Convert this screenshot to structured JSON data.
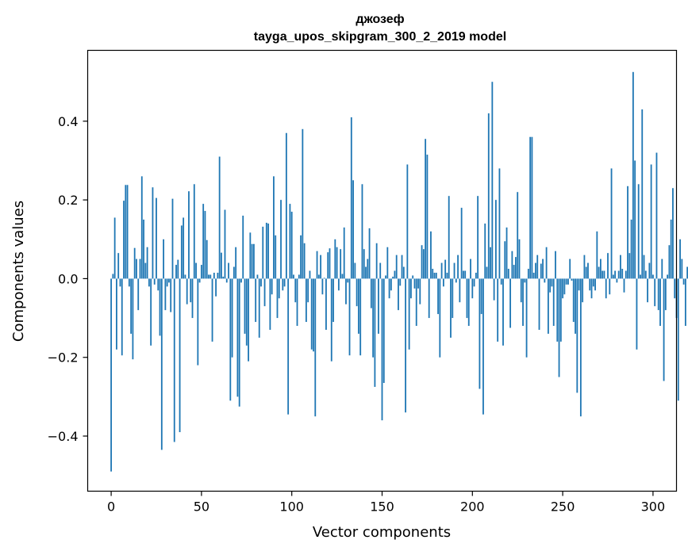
{
  "chart_data": {
    "type": "bar",
    "title": "джозеф",
    "subtitle": "tayga_upos_skipgram_300_2_2019 model",
    "xlabel": "Vector components",
    "ylabel": "Components values",
    "xlim": [
      -13,
      313
    ],
    "ylim": [
      -0.54,
      0.58
    ],
    "xticks": [
      0,
      50,
      100,
      150,
      200,
      250,
      300
    ],
    "yticks": [
      -0.4,
      -0.2,
      0.0,
      0.2,
      0.4
    ],
    "ytick_labels": [
      "−0.4",
      "−0.2",
      "0.0",
      "0.2",
      "0.4"
    ],
    "grid": false,
    "bar_color": "#1f77b4",
    "values": [
      -0.49,
      0.012,
      0.155,
      -0.18,
      0.065,
      -0.02,
      -0.195,
      0.198,
      0.238,
      0.238,
      -0.02,
      -0.14,
      -0.205,
      0.078,
      0.05,
      -0.08,
      0.05,
      0.26,
      0.15,
      0.04,
      0.08,
      -0.02,
      -0.17,
      0.232,
      -0.015,
      0.205,
      -0.03,
      -0.145,
      -0.435,
      0.1,
      -0.08,
      -0.02,
      -0.01,
      -0.085,
      0.203,
      -0.415,
      0.035,
      0.048,
      -0.39,
      0.135,
      0.155,
      0.01,
      -0.065,
      0.222,
      -0.06,
      -0.1,
      0.24,
      0.04,
      -0.22,
      -0.01,
      0.035,
      0.19,
      0.172,
      0.098,
      0.01,
      0.01,
      -0.16,
      0.015,
      -0.045,
      0.015,
      0.31,
      0.066,
      0.005,
      0.175,
      -0.01,
      0.04,
      -0.31,
      -0.2,
      0.03,
      0.08,
      -0.3,
      -0.325,
      -0.01,
      0.16,
      -0.14,
      -0.17,
      -0.21,
      0.117,
      0.088,
      0.088,
      -0.11,
      0.01,
      -0.15,
      -0.02,
      0.132,
      -0.07,
      0.142,
      0.14,
      -0.13,
      -0.04,
      0.26,
      0.11,
      -0.1,
      -0.05,
      0.2,
      -0.03,
      -0.02,
      0.37,
      -0.345,
      0.19,
      0.17,
      0.01,
      -0.06,
      -0.12,
      0.01,
      0.11,
      0.38,
      0.09,
      -0.11,
      -0.06,
      0.02,
      -0.18,
      -0.185,
      -0.35,
      0.07,
      0.01,
      0.06,
      -0.04,
      0.002,
      -0.13,
      0.067,
      0.077,
      -0.21,
      -0.11,
      0.1,
      0.08,
      -0.03,
      0.075,
      0.012,
      0.13,
      -0.065,
      -0.01,
      -0.195,
      0.41,
      0.25,
      0.04,
      -0.07,
      -0.14,
      -0.195,
      0.24,
      0.075,
      0.03,
      0.05,
      0.128,
      -0.075,
      -0.2,
      -0.275,
      0.09,
      -0.14,
      0.04,
      -0.36,
      -0.265,
      0.008,
      0.08,
      -0.05,
      -0.03,
      0.005,
      0.02,
      0.06,
      -0.08,
      -0.018,
      0.06,
      0.03,
      -0.34,
      0.29,
      -0.18,
      -0.05,
      0.008,
      -0.025,
      -0.12,
      -0.025,
      -0.065,
      0.085,
      0.075,
      0.355,
      0.315,
      -0.1,
      0.12,
      0.025,
      0.015,
      0.015,
      -0.09,
      -0.2,
      0.04,
      -0.02,
      0.048,
      0.015,
      0.21,
      -0.15,
      -0.1,
      0.04,
      -0.01,
      0.06,
      -0.06,
      0.18,
      0.02,
      0.02,
      -0.1,
      -0.12,
      0.05,
      -0.05,
      -0.02,
      0.015,
      0.21,
      -0.28,
      -0.09,
      -0.345,
      0.14,
      0.03,
      0.42,
      0.08,
      0.5,
      -0.055,
      0.2,
      -0.16,
      0.28,
      -0.015,
      -0.17,
      0.095,
      0.13,
      0.025,
      -0.125,
      0.07,
      0.035,
      0.055,
      0.22,
      0.1,
      -0.06,
      -0.12,
      -0.01,
      -0.2,
      0.025,
      0.36,
      0.36,
      0.015,
      0.04,
      0.06,
      -0.13,
      0.038,
      0.05,
      -0.01,
      0.08,
      -0.14,
      -0.035,
      -0.02,
      -0.12,
      0.07,
      -0.16,
      -0.25,
      -0.16,
      -0.05,
      -0.04,
      -0.015,
      -0.015,
      0.05,
      -0.005,
      -0.11,
      -0.14,
      -0.29,
      -0.03,
      -0.35,
      -0.06,
      0.06,
      0.03,
      0.04,
      -0.03,
      -0.05,
      -0.02,
      -0.03,
      0.12,
      0.03,
      0.05,
      0.02,
      0.02,
      -0.05,
      0.065,
      -0.04,
      0.28,
      0.01,
      0.02,
      -0.01,
      0.02,
      0.06,
      0.025,
      -0.035,
      0.02,
      0.235,
      0.065,
      0.15,
      0.525,
      0.3,
      -0.18,
      0.24,
      0.01,
      0.43,
      0.06,
      0.02,
      -0.06,
      0.04,
      0.29,
      0.01,
      -0.07,
      0.32,
      -0.08,
      -0.12,
      0.05,
      -0.26,
      -0.08,
      0.01,
      0.085,
      0.15,
      0.23,
      -0.05,
      -0.1,
      -0.31,
      0.1,
      0.05,
      -0.015,
      -0.12,
      0.03,
      0.038
    ]
  }
}
